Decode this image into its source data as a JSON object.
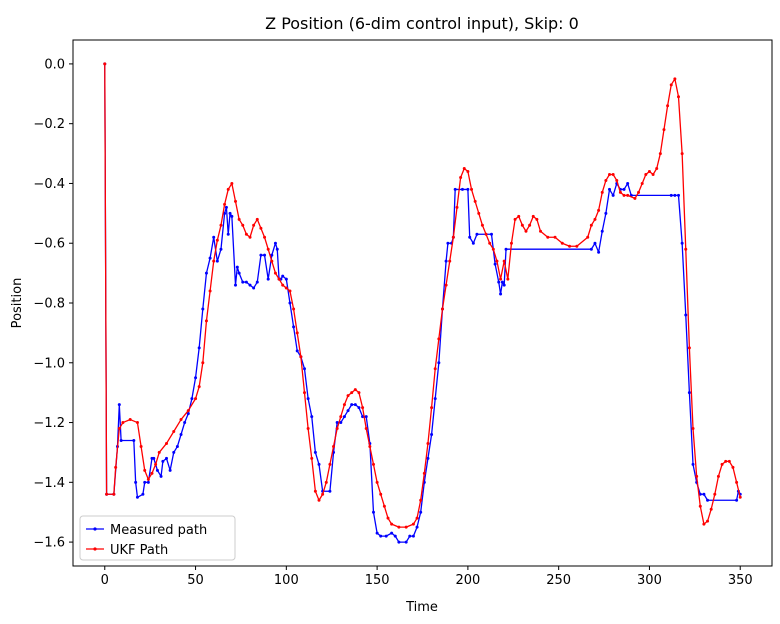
{
  "chart_data": {
    "type": "line",
    "title": "Z Position (6-dim control input), Skip: 0",
    "xlabel": "Time",
    "ylabel": "Position",
    "xlim": [
      -17.5,
      367.5
    ],
    "ylim": [
      -1.68,
      0.08
    ],
    "xticks": [
      0,
      50,
      100,
      150,
      200,
      250,
      300,
      350
    ],
    "yticks": [
      0.0,
      -0.2,
      -0.4,
      -0.6,
      -0.8,
      -1.0,
      -1.2,
      -1.4,
      -1.6
    ],
    "xtick_labels": [
      "0",
      "50",
      "100",
      "150",
      "200",
      "250",
      "300",
      "350"
    ],
    "ytick_labels": [
      "0.0",
      "−0.2",
      "−0.4",
      "−0.6",
      "−0.8",
      "−1.0",
      "−1.2",
      "−1.4",
      "−1.6"
    ],
    "grid": false,
    "legend": "lower-left",
    "series": [
      {
        "name": "Measured path",
        "color": "#0000ff",
        "points": [
          [
            0,
            0.0
          ],
          [
            1,
            -1.44
          ],
          [
            5,
            -1.44
          ],
          [
            7,
            -1.28
          ],
          [
            8,
            -1.14
          ],
          [
            9,
            -1.26
          ],
          [
            16,
            -1.26
          ],
          [
            17,
            -1.4
          ],
          [
            18,
            -1.45
          ],
          [
            21,
            -1.44
          ],
          [
            22,
            -1.4
          ],
          [
            24,
            -1.4
          ],
          [
            26,
            -1.32
          ],
          [
            27,
            -1.32
          ],
          [
            29,
            -1.36
          ],
          [
            31,
            -1.38
          ],
          [
            32,
            -1.33
          ],
          [
            34,
            -1.32
          ],
          [
            36,
            -1.36
          ],
          [
            38,
            -1.3
          ],
          [
            40,
            -1.28
          ],
          [
            42,
            -1.24
          ],
          [
            44,
            -1.2
          ],
          [
            46,
            -1.17
          ],
          [
            48,
            -1.12
          ],
          [
            50,
            -1.05
          ],
          [
            52,
            -0.95
          ],
          [
            54,
            -0.82
          ],
          [
            56,
            -0.7
          ],
          [
            58,
            -0.65
          ],
          [
            60,
            -0.58
          ],
          [
            62,
            -0.66
          ],
          [
            64,
            -0.62
          ],
          [
            66,
            -0.5
          ],
          [
            67,
            -0.48
          ],
          [
            68,
            -0.57
          ],
          [
            69,
            -0.5
          ],
          [
            70,
            -0.51
          ],
          [
            72,
            -0.74
          ],
          [
            73,
            -0.68
          ],
          [
            74,
            -0.7
          ],
          [
            76,
            -0.73
          ],
          [
            78,
            -0.73
          ],
          [
            80,
            -0.74
          ],
          [
            82,
            -0.75
          ],
          [
            84,
            -0.73
          ],
          [
            86,
            -0.64
          ],
          [
            88,
            -0.64
          ],
          [
            90,
            -0.72
          ],
          [
            92,
            -0.64
          ],
          [
            94,
            -0.6
          ],
          [
            95,
            -0.62
          ],
          [
            96,
            -0.72
          ],
          [
            97,
            -0.72
          ],
          [
            98,
            -0.71
          ],
          [
            100,
            -0.72
          ],
          [
            102,
            -0.8
          ],
          [
            104,
            -0.88
          ],
          [
            106,
            -0.96
          ],
          [
            108,
            -0.98
          ],
          [
            110,
            -1.02
          ],
          [
            112,
            -1.12
          ],
          [
            114,
            -1.18
          ],
          [
            116,
            -1.3
          ],
          [
            118,
            -1.34
          ],
          [
            120,
            -1.43
          ],
          [
            124,
            -1.43
          ],
          [
            126,
            -1.3
          ],
          [
            128,
            -1.2
          ],
          [
            130,
            -1.2
          ],
          [
            132,
            -1.18
          ],
          [
            134,
            -1.16
          ],
          [
            136,
            -1.14
          ],
          [
            138,
            -1.14
          ],
          [
            140,
            -1.15
          ],
          [
            142,
            -1.18
          ],
          [
            144,
            -1.18
          ],
          [
            146,
            -1.27
          ],
          [
            148,
            -1.5
          ],
          [
            150,
            -1.57
          ],
          [
            152,
            -1.58
          ],
          [
            155,
            -1.58
          ],
          [
            158,
            -1.57
          ],
          [
            160,
            -1.58
          ],
          [
            162,
            -1.6
          ],
          [
            166,
            -1.6
          ],
          [
            168,
            -1.58
          ],
          [
            170,
            -1.58
          ],
          [
            172,
            -1.55
          ],
          [
            174,
            -1.5
          ],
          [
            176,
            -1.4
          ],
          [
            178,
            -1.32
          ],
          [
            180,
            -1.24
          ],
          [
            182,
            -1.12
          ],
          [
            184,
            -1.0
          ],
          [
            186,
            -0.82
          ],
          [
            188,
            -0.66
          ],
          [
            189,
            -0.6
          ],
          [
            191,
            -0.6
          ],
          [
            192,
            -0.58
          ],
          [
            193,
            -0.42
          ],
          [
            197,
            -0.42
          ],
          [
            200,
            -0.42
          ],
          [
            201,
            -0.58
          ],
          [
            203,
            -0.6
          ],
          [
            205,
            -0.57
          ],
          [
            213,
            -0.57
          ],
          [
            215,
            -0.67
          ],
          [
            217,
            -0.73
          ],
          [
            218,
            -0.77
          ],
          [
            219,
            -0.73
          ],
          [
            220,
            -0.74
          ],
          [
            221,
            -0.62
          ],
          [
            268,
            -0.62
          ],
          [
            270,
            -0.6
          ],
          [
            272,
            -0.63
          ],
          [
            274,
            -0.56
          ],
          [
            276,
            -0.5
          ],
          [
            278,
            -0.42
          ],
          [
            280,
            -0.44
          ],
          [
            282,
            -0.4
          ],
          [
            284,
            -0.42
          ],
          [
            286,
            -0.42
          ],
          [
            288,
            -0.4
          ],
          [
            290,
            -0.44
          ],
          [
            312,
            -0.44
          ],
          [
            314,
            -0.44
          ],
          [
            316,
            -0.44
          ],
          [
            318,
            -0.6
          ],
          [
            320,
            -0.84
          ],
          [
            322,
            -1.1
          ],
          [
            324,
            -1.34
          ],
          [
            326,
            -1.4
          ],
          [
            328,
            -1.44
          ],
          [
            330,
            -1.44
          ],
          [
            332,
            -1.46
          ],
          [
            348,
            -1.46
          ],
          [
            349,
            -1.43
          ],
          [
            350,
            -1.44
          ]
        ]
      },
      {
        "name": "UKF Path",
        "color": "#ff0000",
        "points": [
          [
            0,
            0.0
          ],
          [
            1,
            -1.44
          ],
          [
            5,
            -1.44
          ],
          [
            6,
            -1.35
          ],
          [
            8,
            -1.22
          ],
          [
            10,
            -1.2
          ],
          [
            14,
            -1.19
          ],
          [
            18,
            -1.2
          ],
          [
            20,
            -1.28
          ],
          [
            22,
            -1.36
          ],
          [
            24,
            -1.39
          ],
          [
            26,
            -1.37
          ],
          [
            28,
            -1.34
          ],
          [
            30,
            -1.3
          ],
          [
            34,
            -1.27
          ],
          [
            38,
            -1.23
          ],
          [
            42,
            -1.19
          ],
          [
            46,
            -1.16
          ],
          [
            50,
            -1.12
          ],
          [
            52,
            -1.08
          ],
          [
            54,
            -1.0
          ],
          [
            56,
            -0.86
          ],
          [
            58,
            -0.76
          ],
          [
            60,
            -0.66
          ],
          [
            62,
            -0.59
          ],
          [
            64,
            -0.54
          ],
          [
            66,
            -0.47
          ],
          [
            68,
            -0.42
          ],
          [
            70,
            -0.4
          ],
          [
            72,
            -0.46
          ],
          [
            74,
            -0.52
          ],
          [
            76,
            -0.54
          ],
          [
            78,
            -0.57
          ],
          [
            80,
            -0.58
          ],
          [
            82,
            -0.54
          ],
          [
            84,
            -0.52
          ],
          [
            86,
            -0.55
          ],
          [
            88,
            -0.58
          ],
          [
            90,
            -0.62
          ],
          [
            92,
            -0.66
          ],
          [
            94,
            -0.7
          ],
          [
            96,
            -0.72
          ],
          [
            98,
            -0.74
          ],
          [
            100,
            -0.75
          ],
          [
            102,
            -0.76
          ],
          [
            104,
            -0.82
          ],
          [
            106,
            -0.9
          ],
          [
            108,
            -0.98
          ],
          [
            110,
            -1.1
          ],
          [
            112,
            -1.22
          ],
          [
            114,
            -1.32
          ],
          [
            116,
            -1.43
          ],
          [
            118,
            -1.46
          ],
          [
            120,
            -1.44
          ],
          [
            122,
            -1.4
          ],
          [
            124,
            -1.34
          ],
          [
            126,
            -1.28
          ],
          [
            128,
            -1.22
          ],
          [
            130,
            -1.18
          ],
          [
            132,
            -1.14
          ],
          [
            134,
            -1.11
          ],
          [
            136,
            -1.1
          ],
          [
            138,
            -1.09
          ],
          [
            140,
            -1.1
          ],
          [
            142,
            -1.15
          ],
          [
            144,
            -1.22
          ],
          [
            146,
            -1.28
          ],
          [
            148,
            -1.34
          ],
          [
            150,
            -1.4
          ],
          [
            152,
            -1.44
          ],
          [
            154,
            -1.48
          ],
          [
            156,
            -1.52
          ],
          [
            158,
            -1.54
          ],
          [
            162,
            -1.55
          ],
          [
            166,
            -1.55
          ],
          [
            170,
            -1.54
          ],
          [
            172,
            -1.52
          ],
          [
            174,
            -1.46
          ],
          [
            176,
            -1.37
          ],
          [
            178,
            -1.27
          ],
          [
            180,
            -1.15
          ],
          [
            182,
            -1.02
          ],
          [
            184,
            -0.92
          ],
          [
            186,
            -0.82
          ],
          [
            188,
            -0.74
          ],
          [
            190,
            -0.66
          ],
          [
            192,
            -0.58
          ],
          [
            194,
            -0.48
          ],
          [
            196,
            -0.38
          ],
          [
            198,
            -0.35
          ],
          [
            200,
            -0.36
          ],
          [
            202,
            -0.42
          ],
          [
            204,
            -0.46
          ],
          [
            206,
            -0.5
          ],
          [
            208,
            -0.54
          ],
          [
            210,
            -0.57
          ],
          [
            212,
            -0.6
          ],
          [
            214,
            -0.62
          ],
          [
            216,
            -0.66
          ],
          [
            218,
            -0.72
          ],
          [
            220,
            -0.66
          ],
          [
            222,
            -0.72
          ],
          [
            224,
            -0.6
          ],
          [
            226,
            -0.52
          ],
          [
            228,
            -0.51
          ],
          [
            230,
            -0.54
          ],
          [
            232,
            -0.56
          ],
          [
            234,
            -0.54
          ],
          [
            236,
            -0.51
          ],
          [
            238,
            -0.52
          ],
          [
            240,
            -0.56
          ],
          [
            244,
            -0.58
          ],
          [
            248,
            -0.58
          ],
          [
            252,
            -0.6
          ],
          [
            256,
            -0.61
          ],
          [
            260,
            -0.61
          ],
          [
            266,
            -0.58
          ],
          [
            268,
            -0.54
          ],
          [
            270,
            -0.52
          ],
          [
            272,
            -0.49
          ],
          [
            274,
            -0.43
          ],
          [
            276,
            -0.39
          ],
          [
            278,
            -0.37
          ],
          [
            280,
            -0.37
          ],
          [
            282,
            -0.39
          ],
          [
            284,
            -0.43
          ],
          [
            286,
            -0.44
          ],
          [
            288,
            -0.44
          ],
          [
            292,
            -0.45
          ],
          [
            294,
            -0.43
          ],
          [
            296,
            -0.4
          ],
          [
            298,
            -0.37
          ],
          [
            300,
            -0.36
          ],
          [
            302,
            -0.37
          ],
          [
            304,
            -0.35
          ],
          [
            306,
            -0.3
          ],
          [
            308,
            -0.22
          ],
          [
            310,
            -0.14
          ],
          [
            312,
            -0.07
          ],
          [
            314,
            -0.05
          ],
          [
            316,
            -0.11
          ],
          [
            318,
            -0.3
          ],
          [
            320,
            -0.62
          ],
          [
            322,
            -0.95
          ],
          [
            324,
            -1.22
          ],
          [
            326,
            -1.38
          ],
          [
            328,
            -1.48
          ],
          [
            330,
            -1.54
          ],
          [
            332,
            -1.53
          ],
          [
            334,
            -1.49
          ],
          [
            336,
            -1.44
          ],
          [
            338,
            -1.38
          ],
          [
            340,
            -1.34
          ],
          [
            342,
            -1.33
          ],
          [
            344,
            -1.33
          ],
          [
            346,
            -1.35
          ],
          [
            348,
            -1.4
          ],
          [
            350,
            -1.45
          ]
        ]
      }
    ]
  }
}
